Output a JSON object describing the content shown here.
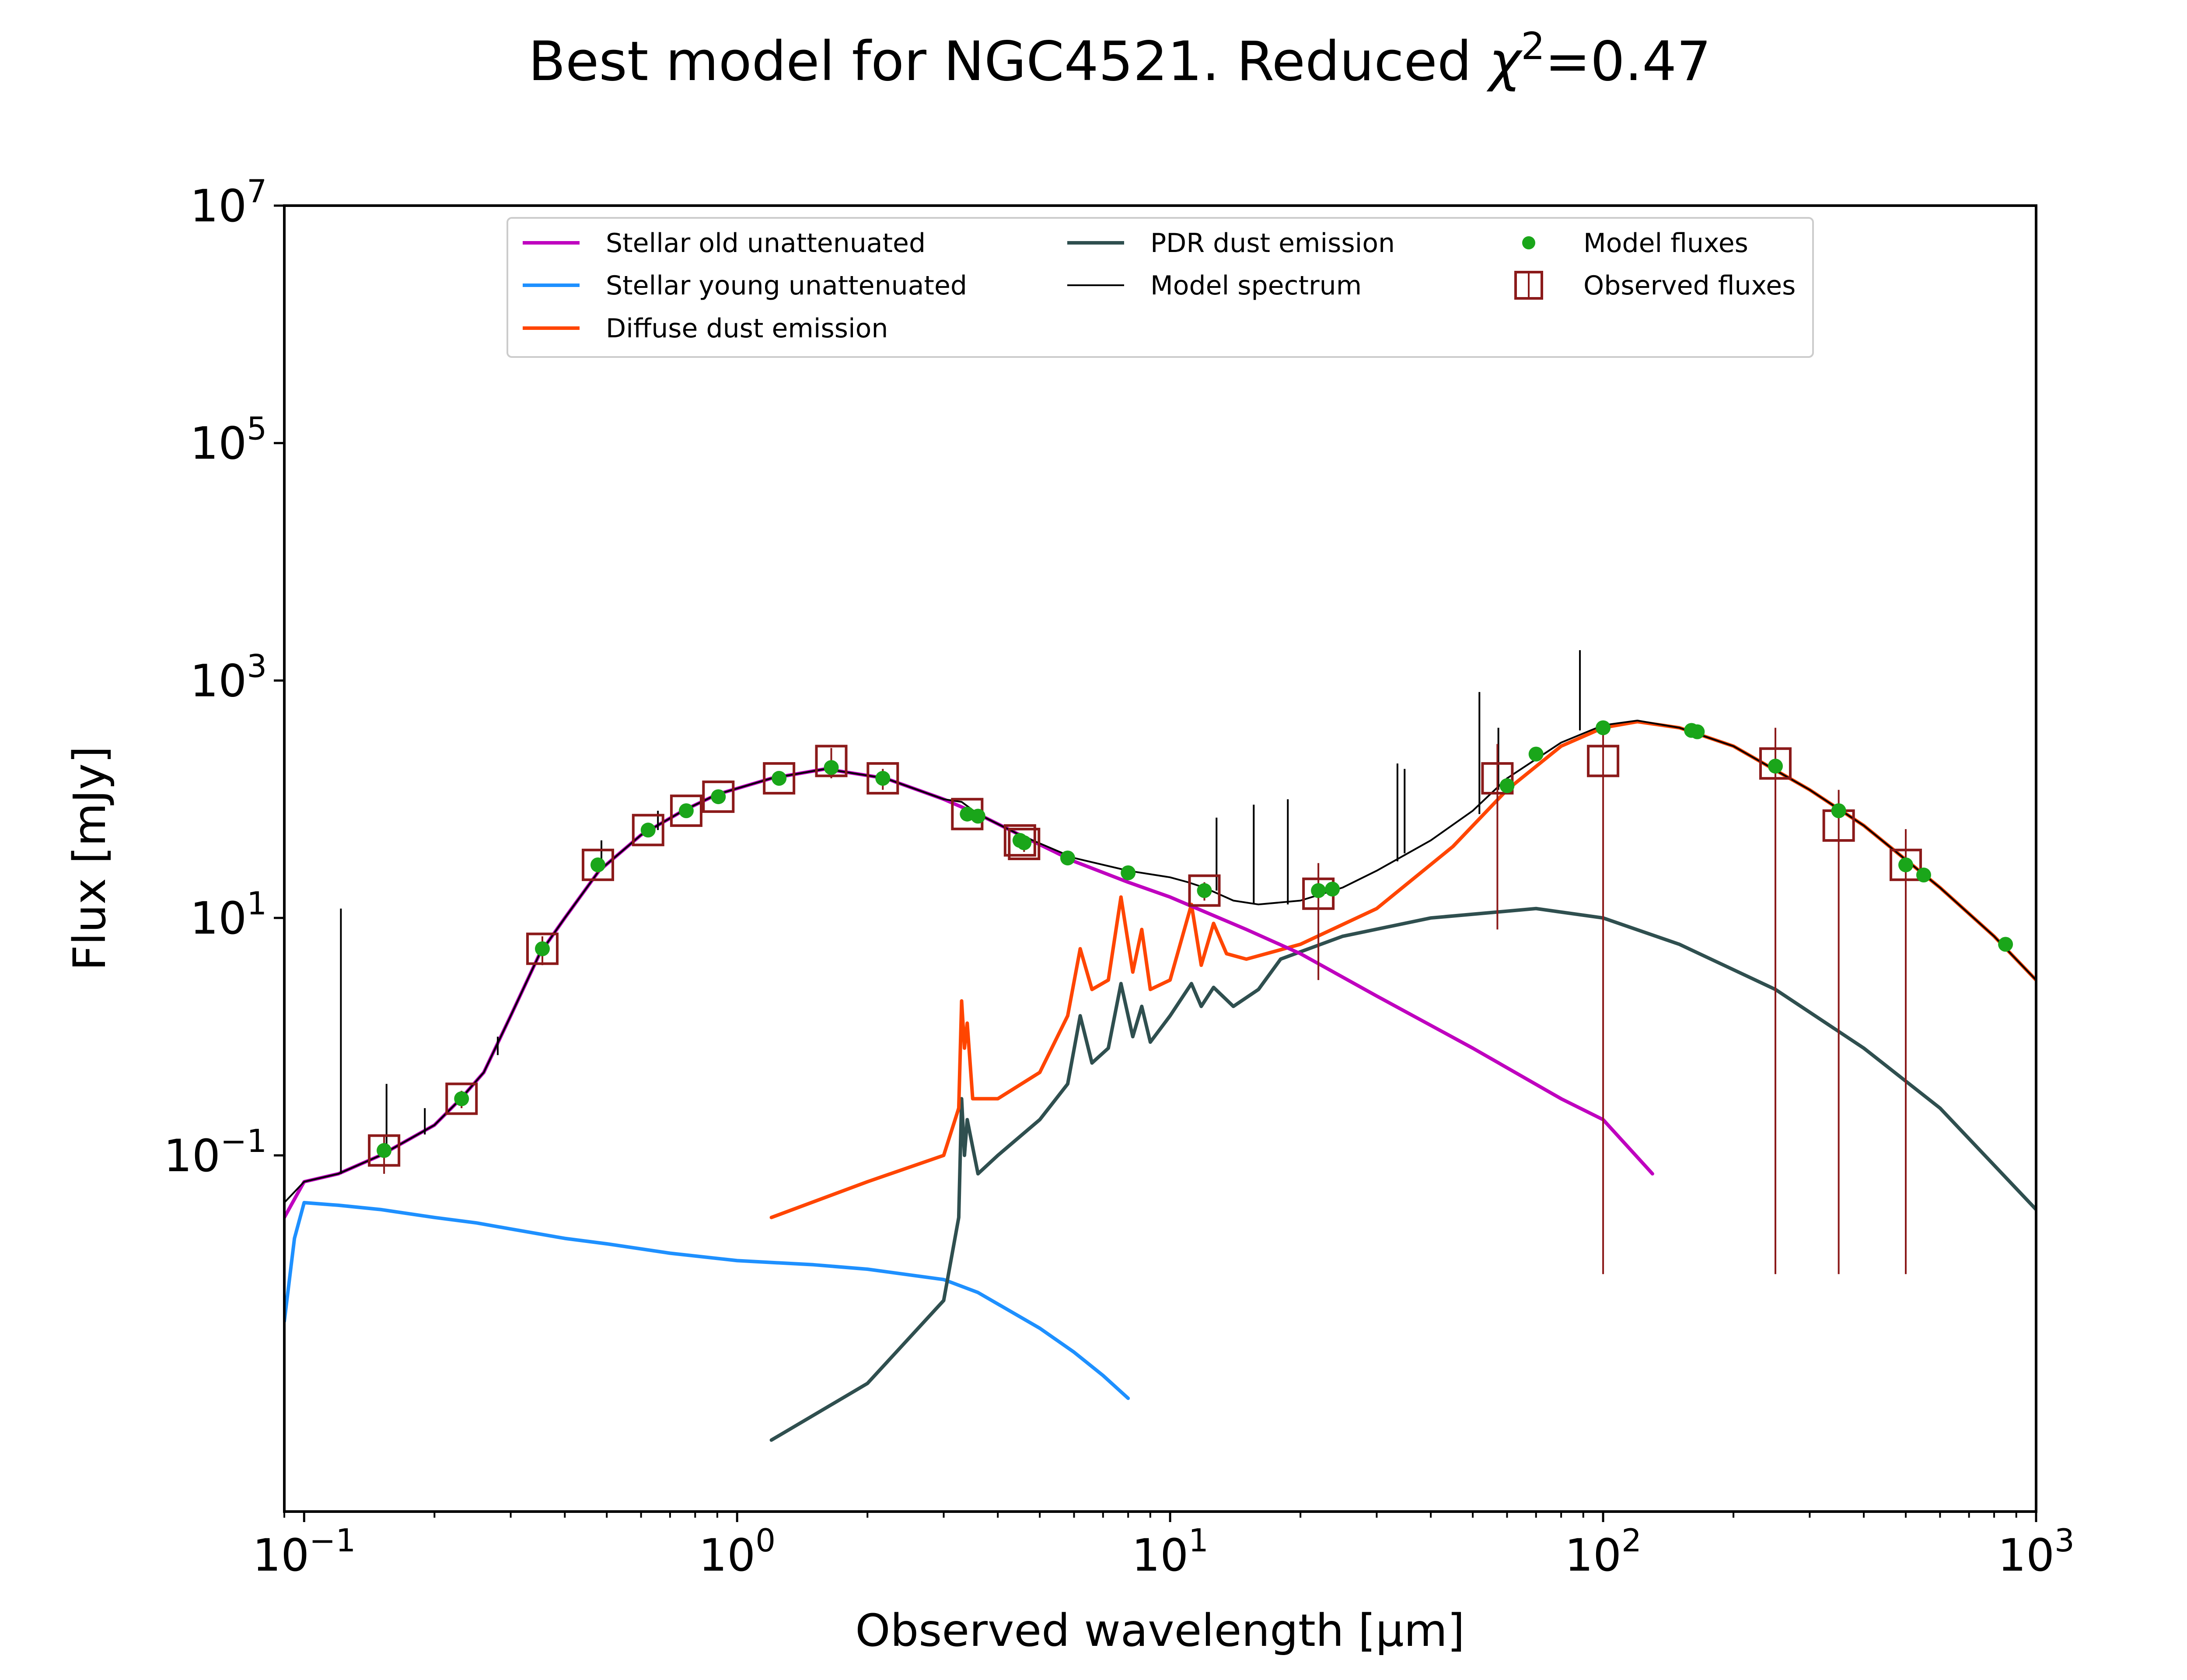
{
  "chart_data": {
    "type": "line",
    "title_prefix": "Best model for NGC4521. Reduced ",
    "title_chi": "χ",
    "title_sup": "2",
    "title_suffix": "=0.47",
    "xlabel": "Observed wavelength [μm]",
    "ylabel": "Flux [mJy]",
    "xscale": "log",
    "yscale": "log",
    "xlim": [
      0.09,
      1000
    ],
    "ylim": [
      0.0001,
      10000000
    ],
    "xticks": [
      {
        "value": 0.1,
        "base": "10",
        "exp": "−1"
      },
      {
        "value": 1,
        "base": "10",
        "exp": "0"
      },
      {
        "value": 10,
        "base": "10",
        "exp": "1"
      },
      {
        "value": 100,
        "base": "10",
        "exp": "2"
      },
      {
        "value": 1000,
        "base": "10",
        "exp": "3"
      }
    ],
    "yticks": [
      {
        "value": 0.1,
        "base": "10",
        "exp": "−1"
      },
      {
        "value": 10,
        "base": "10",
        "exp": "1"
      },
      {
        "value": 1000,
        "base": "10",
        "exp": "3"
      },
      {
        "value": 100000,
        "base": "10",
        "exp": "5"
      },
      {
        "value": 10000000,
        "base": "10",
        "exp": "7"
      }
    ],
    "legend_position": "upper center",
    "legend": [
      {
        "label": "Stellar old unattenuated",
        "color": "#BF00BF",
        "kind": "line"
      },
      {
        "label": "Stellar young unattenuated",
        "color": "#1E90FF",
        "kind": "line"
      },
      {
        "label": "Diffuse dust emission",
        "color": "#FF4500",
        "kind": "line"
      },
      {
        "label": "PDR dust emission",
        "color": "#2F4F4F",
        "kind": "line"
      },
      {
        "label": "Model spectrum",
        "color": "#000000",
        "kind": "thinline"
      },
      {
        "label": "Model fluxes",
        "color": "#1AA61A",
        "kind": "dot"
      },
      {
        "label": "Observed fluxes",
        "color": "#8B1A1A",
        "kind": "square"
      }
    ],
    "series": [
      {
        "name": "Stellar old unattenuated",
        "color": "#BF00BF",
        "points": [
          [
            0.09,
            0.03
          ],
          [
            0.1,
            0.06
          ],
          [
            0.12,
            0.07
          ],
          [
            0.15,
            0.1
          ],
          [
            0.2,
            0.18
          ],
          [
            0.23,
            0.3
          ],
          [
            0.26,
            0.5
          ],
          [
            0.3,
            1.5
          ],
          [
            0.35,
            5
          ],
          [
            0.4,
            10
          ],
          [
            0.48,
            25
          ],
          [
            0.6,
            50
          ],
          [
            0.75,
            80
          ],
          [
            0.9,
            110
          ],
          [
            1.2,
            150
          ],
          [
            1.6,
            180
          ],
          [
            2.2,
            150
          ],
          [
            3,
            100
          ],
          [
            3.6,
            75
          ],
          [
            4.5,
            50
          ],
          [
            6,
            30
          ],
          [
            8,
            20
          ],
          [
            10,
            15
          ],
          [
            15,
            8
          ],
          [
            20,
            5
          ],
          [
            30,
            2.2
          ],
          [
            50,
            0.8
          ],
          [
            80,
            0.3
          ],
          [
            100,
            0.2
          ],
          [
            130,
            0.07
          ]
        ]
      },
      {
        "name": "Stellar young unattenuated",
        "color": "#1E90FF",
        "points": [
          [
            0.09,
            0.004
          ],
          [
            0.095,
            0.02
          ],
          [
            0.1,
            0.04
          ],
          [
            0.12,
            0.038
          ],
          [
            0.15,
            0.035
          ],
          [
            0.2,
            0.03
          ],
          [
            0.25,
            0.027
          ],
          [
            0.3,
            0.024
          ],
          [
            0.4,
            0.02
          ],
          [
            0.5,
            0.018
          ],
          [
            0.7,
            0.015
          ],
          [
            1,
            0.013
          ],
          [
            1.5,
            0.012
          ],
          [
            2,
            0.011
          ],
          [
            3,
            0.009
          ],
          [
            3.6,
            0.007
          ],
          [
            5,
            0.0035
          ],
          [
            6,
            0.0022
          ],
          [
            7,
            0.0014
          ],
          [
            8,
            0.0009
          ]
        ]
      },
      {
        "name": "Diffuse dust emission",
        "color": "#FF4500",
        "points": [
          [
            1.2,
            0.03
          ],
          [
            2,
            0.06
          ],
          [
            3,
            0.1
          ],
          [
            3.25,
            0.25
          ],
          [
            3.3,
            2
          ],
          [
            3.35,
            0.8
          ],
          [
            3.4,
            1.3
          ],
          [
            3.5,
            0.3
          ],
          [
            4,
            0.3
          ],
          [
            5,
            0.5
          ],
          [
            5.8,
            1.5
          ],
          [
            6.2,
            5.5
          ],
          [
            6.6,
            2.5
          ],
          [
            7.2,
            3
          ],
          [
            7.7,
            15
          ],
          [
            8.2,
            3.5
          ],
          [
            8.6,
            8
          ],
          [
            9,
            2.5
          ],
          [
            10,
            3
          ],
          [
            11.2,
            13
          ],
          [
            11.8,
            4
          ],
          [
            12.6,
            9
          ],
          [
            13.5,
            5
          ],
          [
            15,
            4.5
          ],
          [
            20,
            6
          ],
          [
            30,
            12
          ],
          [
            45,
            40
          ],
          [
            60,
            120
          ],
          [
            80,
            280
          ],
          [
            100,
            400
          ],
          [
            120,
            450
          ],
          [
            150,
            400
          ],
          [
            200,
            280
          ],
          [
            300,
            120
          ],
          [
            400,
            60
          ],
          [
            600,
            18
          ],
          [
            800,
            7
          ],
          [
            1000,
            3
          ]
        ]
      },
      {
        "name": "PDR dust emission",
        "color": "#2F4F4F",
        "points": [
          [
            1.2,
            0.0004
          ],
          [
            2,
            0.0012
          ],
          [
            3,
            0.006
          ],
          [
            3.25,
            0.03
          ],
          [
            3.3,
            0.3
          ],
          [
            3.35,
            0.1
          ],
          [
            3.4,
            0.2
          ],
          [
            3.6,
            0.07
          ],
          [
            4,
            0.1
          ],
          [
            5,
            0.2
          ],
          [
            5.8,
            0.4
          ],
          [
            6.2,
            1.5
          ],
          [
            6.6,
            0.6
          ],
          [
            7.2,
            0.8
          ],
          [
            7.7,
            2.8
          ],
          [
            8.2,
            1
          ],
          [
            8.6,
            1.8
          ],
          [
            9,
            0.9
          ],
          [
            10,
            1.5
          ],
          [
            11.2,
            2.8
          ],
          [
            11.8,
            1.8
          ],
          [
            12.6,
            2.6
          ],
          [
            14,
            1.8
          ],
          [
            16,
            2.5
          ],
          [
            18,
            4.5
          ],
          [
            25,
            7
          ],
          [
            40,
            10
          ],
          [
            70,
            12
          ],
          [
            100,
            10
          ],
          [
            150,
            6
          ],
          [
            250,
            2.5
          ],
          [
            400,
            0.8
          ],
          [
            600,
            0.25
          ],
          [
            1000,
            0.035
          ]
        ]
      },
      {
        "name": "Model spectrum",
        "color": "#000000",
        "points": [
          [
            0.09,
            0.04
          ],
          [
            0.1,
            0.06
          ],
          [
            0.12,
            0.07
          ],
          [
            0.15,
            0.1
          ],
          [
            0.2,
            0.18
          ],
          [
            0.23,
            0.3
          ],
          [
            0.26,
            0.5
          ],
          [
            0.3,
            1.5
          ],
          [
            0.35,
            5
          ],
          [
            0.4,
            10
          ],
          [
            0.48,
            25
          ],
          [
            0.6,
            50
          ],
          [
            0.75,
            80
          ],
          [
            0.9,
            110
          ],
          [
            1.2,
            150
          ],
          [
            1.6,
            180
          ],
          [
            2.2,
            150
          ],
          [
            3,
            100
          ],
          [
            3.3,
            95
          ],
          [
            3.6,
            75
          ],
          [
            4.5,
            50
          ],
          [
            6,
            32
          ],
          [
            8,
            25
          ],
          [
            10,
            22
          ],
          [
            11,
            20
          ],
          [
            12,
            18
          ],
          [
            14,
            14
          ],
          [
            16,
            13
          ],
          [
            20,
            14
          ],
          [
            25,
            18
          ],
          [
            30,
            25
          ],
          [
            40,
            45
          ],
          [
            50,
            80
          ],
          [
            60,
            150
          ],
          [
            80,
            300
          ],
          [
            100,
            420
          ],
          [
            120,
            460
          ],
          [
            150,
            400
          ],
          [
            200,
            280
          ],
          [
            300,
            120
          ],
          [
            400,
            60
          ],
          [
            600,
            18
          ],
          [
            800,
            7
          ],
          [
            1000,
            3
          ]
        ]
      }
    ],
    "emission_lines": [
      {
        "x": 0.1216,
        "y_top": 12,
        "y_base": 0.07
      },
      {
        "x": 0.155,
        "y_top": 0.4,
        "y_base": 0.1
      },
      {
        "x": 0.19,
        "y_top": 0.25,
        "y_base": 0.15
      },
      {
        "x": 0.28,
        "y_top": 0.7,
        "y_base": 1.0
      },
      {
        "x": 0.486,
        "y_top": 45,
        "y_base": 25
      },
      {
        "x": 0.6563,
        "y_top": 80,
        "y_base": 55
      },
      {
        "x": 12.8,
        "y_top": 70,
        "y_base": 17
      },
      {
        "x": 15.6,
        "y_top": 90,
        "y_base": 13
      },
      {
        "x": 18.7,
        "y_top": 100,
        "y_base": 13
      },
      {
        "x": 33.5,
        "y_top": 200,
        "y_base": 30
      },
      {
        "x": 34.8,
        "y_top": 180,
        "y_base": 35
      },
      {
        "x": 51.8,
        "y_top": 800,
        "y_base": 75
      },
      {
        "x": 57.3,
        "y_top": 400,
        "y_base": 120
      },
      {
        "x": 88.4,
        "y_top": 1800,
        "y_base": 380
      }
    ],
    "model_fluxes": [
      [
        0.153,
        0.11
      ],
      [
        0.231,
        0.3
      ],
      [
        0.355,
        5.5
      ],
      [
        0.477,
        28
      ],
      [
        0.623,
        55
      ],
      [
        0.763,
        80
      ],
      [
        0.905,
        105
      ],
      [
        1.25,
        150
      ],
      [
        1.65,
        185
      ],
      [
        2.17,
        150
      ],
      [
        3.4,
        75
      ],
      [
        3.6,
        72
      ],
      [
        4.5,
        45
      ],
      [
        4.6,
        43
      ],
      [
        5.8,
        32
      ],
      [
        8.0,
        24
      ],
      [
        12.0,
        17
      ],
      [
        22.0,
        17
      ],
      [
        23.7,
        17.5
      ],
      [
        60.0,
        130
      ],
      [
        70.0,
        240
      ],
      [
        100.0,
        400
      ],
      [
        160.0,
        380
      ],
      [
        165.0,
        370
      ],
      [
        250.0,
        190
      ],
      [
        350.0,
        80
      ],
      [
        500.0,
        28
      ],
      [
        550.0,
        23
      ],
      [
        850.0,
        6
      ]
    ],
    "observed_fluxes": [
      {
        "x": 0.153,
        "y": 0.11,
        "err": 0.04
      },
      {
        "x": 0.231,
        "y": 0.3,
        "err": 0.05
      },
      {
        "x": 0.355,
        "y": 5.5,
        "err": 1.5
      },
      {
        "x": 0.477,
        "y": 28,
        "err": 4
      },
      {
        "x": 0.623,
        "y": 55,
        "err": 6
      },
      {
        "x": 0.763,
        "y": 80,
        "err": 8
      },
      {
        "x": 0.905,
        "y": 105,
        "err": 10
      },
      {
        "x": 1.25,
        "y": 150,
        "err": 15
      },
      {
        "x": 1.65,
        "y": 210,
        "err": 60
      },
      {
        "x": 2.17,
        "y": 150,
        "err": 30
      },
      {
        "x": 3.4,
        "y": 75,
        "err": 10
      },
      {
        "x": 4.5,
        "y": 45,
        "err": 6
      },
      {
        "x": 4.6,
        "y": 42,
        "err": 6
      },
      {
        "x": 12.0,
        "y": 17,
        "err": 3
      },
      {
        "x": 22.0,
        "y": 16,
        "err": 13
      },
      {
        "x": 57.0,
        "y": 150,
        "err": 142
      },
      {
        "x": 100.0,
        "y": 210,
        "err": 209.99
      },
      {
        "x": 250.0,
        "y": 200,
        "err": 199.99
      },
      {
        "x": 350.0,
        "y": 60,
        "err": 59.99
      },
      {
        "x": 500.0,
        "y": 28,
        "err": 27.99
      }
    ]
  }
}
